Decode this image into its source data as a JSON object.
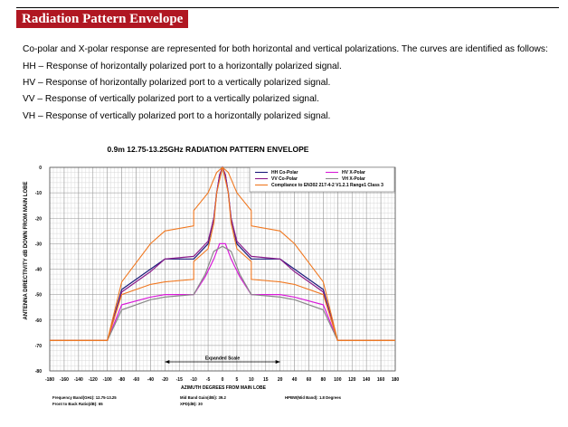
{
  "header": {
    "title": "Radiation Pattern Envelope"
  },
  "intro": {
    "line1": "Co-polar and X-polar response are represented for both horizontal and vertical polarizations. The curves are identified as follows:",
    "line2": "HH – Response of horizontally polarized port to a horizontally polarized signal.",
    "line3": "HV – Response of horizontally polarized port to a vertically polarized signal.",
    "line4": "VV – Response of vertically polarized port to a vertically polarized signal.",
    "line5": "VH – Response of vertically polarized port to a horizontally polarized signal."
  },
  "chart_data": {
    "type": "line",
    "title": "0.9m 12.75-13.25GHz  RADIATION PATTERN ENVELOPE",
    "xlabel": "AZIMUTH DEGREES FROM MAIN LOBE",
    "ylabel": "ANTENNA DIRECTIVITY dB DOWN FROM MAIN LOBE",
    "x_ticks": [
      "-180",
      "-160",
      "-140",
      "-120",
      "-100",
      "-80",
      "-60",
      "-40",
      "-20",
      "-15",
      "-10",
      "-5",
      "0",
      "5",
      "10",
      "15",
      "20",
      "40",
      "60",
      "80",
      "100",
      "120",
      "140",
      "160",
      "180"
    ],
    "y_ticks": [
      "0",
      "-10",
      "-20",
      "-30",
      "-40",
      "-50",
      "-60",
      "-70",
      "-80"
    ],
    "ylim": [
      -80,
      0
    ],
    "xlim": [
      -180,
      180
    ],
    "x_scale_note": "piecewise: ±20° expanded region in the centre",
    "annotation": "Expanded Scale",
    "legend_position": "top-right",
    "series": [
      {
        "name": "HH Co-Polar",
        "color": "#1a1a7a",
        "x": [
          -180,
          -100,
          -80,
          -40,
          -20,
          -10,
          -5,
          -3,
          -2,
          -1,
          0,
          1,
          2,
          3,
          5,
          10,
          20,
          40,
          80,
          100,
          180
        ],
        "y": [
          -68,
          -68,
          -48,
          -40,
          -36,
          -36,
          -30,
          -20,
          -10,
          -3,
          0,
          -3,
          -10,
          -20,
          -30,
          -36,
          -36,
          -40,
          -48,
          -68,
          -68
        ]
      },
      {
        "name": "HV X-Polar",
        "color": "#d81bd8",
        "x": [
          -180,
          -100,
          -80,
          -40,
          -20,
          -10,
          -6,
          -3,
          -1,
          0,
          1,
          3,
          6,
          10,
          20,
          40,
          80,
          100,
          180
        ],
        "y": [
          -68,
          -68,
          -54,
          -51,
          -50,
          -50,
          -43,
          -36,
          -30,
          -30,
          -30,
          -36,
          -43,
          -50,
          -50,
          -51,
          -54,
          -68,
          -68
        ]
      },
      {
        "name": "VV Co-Polar",
        "color": "#8a1a8a",
        "x": [
          -180,
          -100,
          -80,
          -40,
          -20,
          -10,
          -5,
          -3,
          -2,
          -1,
          0,
          1,
          2,
          3,
          5,
          10,
          20,
          40,
          80,
          100,
          180
        ],
        "y": [
          -68,
          -68,
          -49,
          -41,
          -36,
          -35,
          -29,
          -20,
          -10,
          -3,
          0,
          -3,
          -10,
          -20,
          -29,
          -35,
          -36,
          -41,
          -49,
          -68,
          -68
        ]
      },
      {
        "name": "VH X-Polar",
        "color": "#8a8a8a",
        "x": [
          -180,
          -100,
          -80,
          -40,
          -20,
          -10,
          -6,
          -3,
          0,
          3,
          6,
          10,
          20,
          40,
          80,
          100,
          180
        ],
        "y": [
          -68,
          -68,
          -56,
          -52,
          -51,
          -50,
          -42,
          -33,
          -31,
          -33,
          -42,
          -50,
          -51,
          -52,
          -56,
          -68,
          -68
        ]
      },
      {
        "name": "Compliance to EN302 217-4-2 V1.2.1 Range1 Class 3",
        "color": "#f07820",
        "x": [
          -180,
          -100,
          -80,
          -40,
          -20,
          -10,
          -10,
          -5,
          -2,
          0,
          2,
          5,
          10,
          10,
          20,
          40,
          80,
          100,
          180
        ],
        "y": [
          -68,
          -68,
          -45,
          -30,
          -25,
          -23,
          -17,
          -10,
          -2,
          0,
          -2,
          -10,
          -17,
          -23,
          -25,
          -30,
          -45,
          -68,
          -68
        ]
      },
      {
        "name": "",
        "color": "#f07820",
        "x": [
          -180,
          -100,
          -80,
          -40,
          -20,
          -10,
          -10,
          -5,
          -3,
          -2,
          0,
          2,
          3,
          5,
          10,
          10,
          20,
          40,
          80,
          100,
          180
        ],
        "y": [
          -68,
          -68,
          -50,
          -46,
          -45,
          -44,
          -37,
          -32,
          -22,
          -10,
          0,
          -10,
          -22,
          -32,
          -37,
          -44,
          -45,
          -46,
          -50,
          -68,
          -68
        ]
      }
    ]
  },
  "footer": {
    "freq": "Frequency Band(GHz): 12.75-13.25",
    "ftb": "Front to Back Ratio(dB): 65",
    "gain": "Mid Band Gain(dBi): 39.2",
    "xpd": "XPD(dB): 30",
    "hpbw": "HPBW(Mid Band): 1.8 Degrees"
  }
}
